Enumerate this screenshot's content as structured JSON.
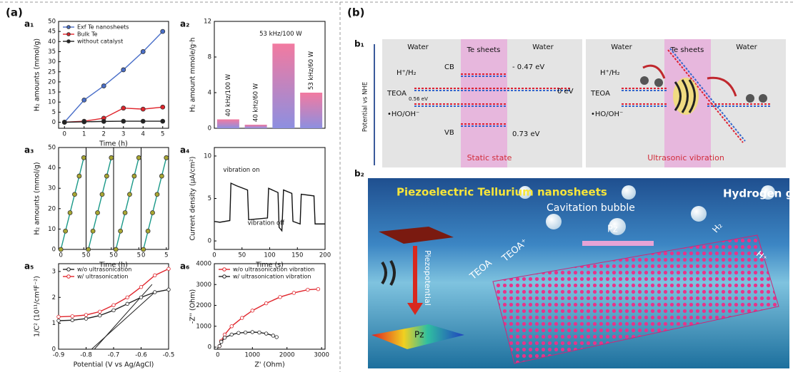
{
  "chart_data": [
    {
      "label": "a₁",
      "type": "line",
      "x": [
        0,
        1,
        2,
        3,
        4,
        5
      ],
      "xlim": [
        -0.3,
        5.3
      ],
      "xticks": [
        0,
        1,
        2,
        3,
        4,
        5
      ],
      "ylim": [
        -3,
        50
      ],
      "yticks": [
        0,
        5,
        10,
        15,
        20,
        25,
        30,
        35,
        40,
        45,
        50
      ],
      "xlabel": "Time (h)",
      "ylabel": "H₂ amounts (mmol/g)",
      "legend": "upper left",
      "marker": "filled",
      "series": [
        {
          "name": "Exf Te nanosheets",
          "color": "#4a6fc9",
          "values": [
            0,
            11,
            18,
            26,
            35,
            45
          ]
        },
        {
          "name": "Bulk Te",
          "color": "#e0242b",
          "values": [
            0,
            0.5,
            2,
            7,
            6.5,
            7.5
          ]
        },
        {
          "name": "without catalyst",
          "color": "#222222",
          "values": [
            0,
            0.2,
            0.4,
            0.5,
            0.5,
            0.5
          ]
        }
      ]
    },
    {
      "label": "a₂",
      "type": "bar",
      "categories": [
        "40 kHz/100 W",
        "40 kHz/60 W",
        "53 kHz/100 W",
        "53 kHz/60 W"
      ],
      "values": [
        1.0,
        0.4,
        9.5,
        4.0
      ],
      "ylim": [
        0,
        12
      ],
      "yticks": [
        0,
        4,
        8,
        12
      ],
      "ylabel": "H₂ amount mmole/g·h",
      "gradient": [
        "#8d8fe0",
        "#f27aa0"
      ]
    },
    {
      "label": "a₃",
      "type": "line",
      "panels": 4,
      "x": [
        0,
        1,
        2,
        3,
        4,
        5
      ],
      "xlim": [
        -0.5,
        5.5
      ],
      "xticks": [
        0,
        5
      ],
      "ylim": [
        0,
        50
      ],
      "yticks": [
        0,
        10,
        20,
        30,
        40,
        50
      ],
      "xlabel": "Time (h)",
      "ylabel": "H₂ amounts (mmol/g)",
      "marker": "filled",
      "series": [
        {
          "color": "#1a9988",
          "marker_color": "#a8a632",
          "values": [
            0,
            9,
            18,
            27,
            36,
            45
          ]
        },
        {
          "color": "#1a9988",
          "marker_color": "#a8a632",
          "values": [
            0,
            9,
            18,
            27,
            36,
            45
          ]
        },
        {
          "color": "#1a9988",
          "marker_color": "#a8a632",
          "values": [
            0,
            9,
            18,
            27,
            36,
            45
          ]
        },
        {
          "color": "#1a9988",
          "marker_color": "#a8a632",
          "values": [
            0,
            9,
            18,
            27,
            36,
            45
          ]
        }
      ]
    },
    {
      "label": "a₄",
      "type": "line",
      "x": [
        0,
        10,
        28,
        30,
        40,
        60,
        62,
        80,
        96,
        98,
        115,
        117,
        122,
        125,
        140,
        142,
        155,
        157,
        180,
        182,
        200
      ],
      "xlim": [
        0,
        200
      ],
      "xticks": [
        0,
        50,
        100,
        150,
        200
      ],
      "ylim": [
        -1,
        11
      ],
      "yticks": [
        0,
        5,
        10
      ],
      "xlabel": "Time (s)",
      "ylabel": "Current density (μA/cm²)",
      "annotations": [
        "vibration on",
        "vibration off"
      ],
      "series": [
        {
          "color": "#111111",
          "values": [
            2.3,
            2.2,
            2.4,
            6.8,
            6.5,
            6.0,
            2.5,
            2.6,
            2.7,
            6.2,
            5.7,
            1.6,
            1.2,
            6.0,
            5.6,
            2.3,
            2.0,
            5.5,
            5.3,
            2.0,
            2.0
          ]
        }
      ]
    },
    {
      "label": "a₅",
      "type": "line",
      "x": [
        -0.9,
        -0.85,
        -0.8,
        -0.75,
        -0.7,
        -0.65,
        -0.6,
        -0.55,
        -0.5
      ],
      "xlim": [
        -0.9,
        -0.5
      ],
      "xticks": [
        -0.9,
        -0.8,
        -0.7,
        -0.6,
        -0.5
      ],
      "ylim": [
        0,
        3.3
      ],
      "yticks": [
        0,
        1,
        2,
        3
      ],
      "xlabel": "Potential (V vs Ag/AgCl)",
      "ylabel": "1/C² (10¹¹/cm⁴F⁻²)",
      "legend": "upper left",
      "marker": "open",
      "series": [
        {
          "name": "w/o ultrasonication",
          "color": "#222222",
          "values": [
            1.1,
            1.12,
            1.18,
            1.3,
            1.5,
            1.75,
            2.0,
            2.2,
            2.3
          ]
        },
        {
          "name": "w/ ultrasonication",
          "color": "#e0242b",
          "values": [
            1.25,
            1.27,
            1.32,
            1.45,
            1.7,
            2.0,
            2.4,
            2.85,
            3.1
          ]
        }
      ],
      "fit_lines": [
        {
          "color": "#222222",
          "x": [
            -0.78,
            -0.55
          ],
          "values": [
            0,
            2.2
          ]
        },
        {
          "color": "#222222",
          "x": [
            -0.77,
            -0.56
          ],
          "values": [
            0,
            2.5
          ]
        }
      ]
    },
    {
      "label": "a₆",
      "type": "line",
      "xlim": [
        -100,
        3100
      ],
      "xticks": [
        0,
        1000,
        2000,
        3000
      ],
      "ylim": [
        -100,
        4000
      ],
      "yticks": [
        0,
        1000,
        2000,
        3000,
        4000
      ],
      "xlabel": "Z' (Ohm)",
      "ylabel": "-Z'' (Ohm)",
      "legend": "upper left",
      "marker": "open",
      "series": [
        {
          "name": "w/o ultrasonication vibration",
          "color": "#e0242b",
          "x": [
            50,
            100,
            200,
            400,
            700,
            1000,
            1400,
            1800,
            2200,
            2600,
            2900
          ],
          "values": [
            50,
            300,
            600,
            1000,
            1400,
            1750,
            2100,
            2400,
            2600,
            2750,
            2780
          ]
        },
        {
          "name": "w/ ultrasonication vibration",
          "color": "#222222",
          "x": [
            50,
            100,
            200,
            400,
            600,
            800,
            1000,
            1200,
            1400,
            1600,
            1700
          ],
          "values": [
            50,
            250,
            450,
            600,
            680,
            700,
            720,
            700,
            650,
            550,
            480
          ]
        }
      ]
    }
  ],
  "panel_a": {
    "label": "(a)"
  },
  "panel_b": {
    "label": "(b)",
    "b1": {
      "label": "b₁",
      "axis_label": "Potential vs NHE",
      "static": {
        "water_left": "Water",
        "te": "Te sheets",
        "water_right": "Water",
        "h": "H⁺/H₂",
        "cb": "CB",
        "cb_level": "- 0.47 eV",
        "teoa": "TEOA",
        "teoa_level": "0.56 eV",
        "zero": "0 eV",
        "ho": "•HO/OH⁻",
        "vb": "VB",
        "vb_level": "0.73 eV",
        "caption": "Static state"
      },
      "vibration": {
        "water_left": "Water",
        "te": "Te sheets",
        "water_right": "Water",
        "h": "H⁺/H₂",
        "teoa": "TEOA",
        "ho": "•HO/OH⁻",
        "caption": "Ultrasonic vibration"
      }
    },
    "b2": {
      "label": "b₂",
      "title_left": "Piezoelectric Tellurium nanosheets",
      "bubble": "Cavitation bubble",
      "title_right": "Hydrogen generation",
      "piezo": "Piezopotential",
      "teoa": "TEOA",
      "teoa_plus": "TEOA⁺",
      "pz": "Pz",
      "h2": "H₂",
      "h_plus": "H⁺",
      "pz_slab": "Pz"
    }
  }
}
